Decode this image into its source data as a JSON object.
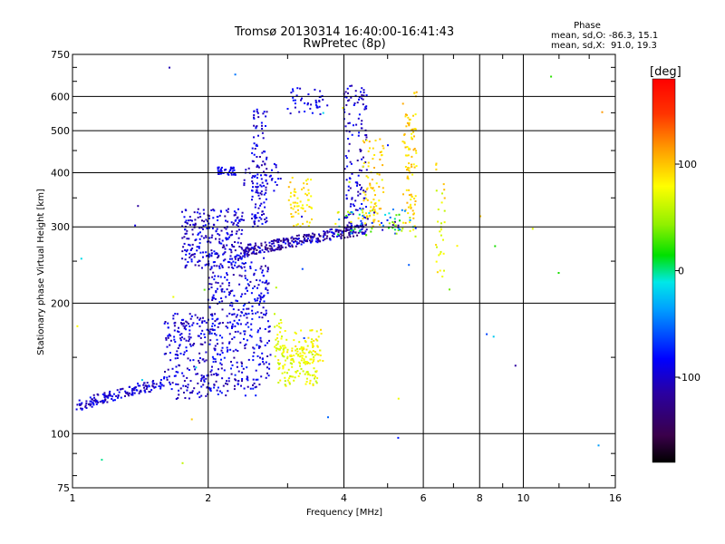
{
  "chart_data": {
    "type": "scatter",
    "title": "Tromsø 20130314 16:40:00-16:41:43",
    "subtitle": "RwPretec (8p)",
    "xlabel": "Frequency [MHz]",
    "ylabel": "Stationary phase Virtual Height [km]",
    "xscale": "log",
    "yscale": "log",
    "xlim": [
      1,
      16
    ],
    "ylim": [
      75,
      750
    ],
    "xticks": [
      1,
      2,
      4,
      6,
      8,
      10,
      16
    ],
    "xtick_labels": [
      "1",
      "2",
      "4",
      "6",
      "8",
      "10",
      "16"
    ],
    "yticks": [
      75,
      100,
      200,
      300,
      400,
      500,
      600,
      750
    ],
    "ytick_labels": [
      "75",
      "100",
      "200",
      "300",
      "400",
      "500",
      "600",
      "750"
    ],
    "grid": true,
    "phase_box": {
      "heading": "Phase",
      "line_o": "mean, sd,O: -86.3, 15.1",
      "line_x": "mean, sd,X:  91.0, 19.3"
    },
    "colorbar": {
      "label": "[deg]",
      "ticks": [
        100,
        0,
        -100
      ],
      "tick_labels": [
        "100",
        "0",
        "-100"
      ],
      "range": [
        -180,
        180
      ],
      "palette": "rainbow"
    },
    "clusters": [
      {
        "x": [
          1.02,
          1.6
        ],
        "y": [
          113,
          135
        ],
        "n": 160,
        "phase": [
          -120,
          -95
        ],
        "curve": "rise"
      },
      {
        "x": [
          1.6,
          2.0
        ],
        "y": [
          120,
          190
        ],
        "n": 190,
        "phase": [
          -120,
          -95
        ]
      },
      {
        "x": [
          2.0,
          2.6
        ],
        "y": [
          122,
          260
        ],
        "n": 340,
        "phase": [
          -120,
          -90
        ]
      },
      {
        "x": [
          2.6,
          2.75
        ],
        "y": [
          130,
          255
        ],
        "n": 70,
        "phase": [
          -120,
          -95
        ]
      },
      {
        "x": [
          1.75,
          2.4
        ],
        "y": [
          240,
          330
        ],
        "n": 260,
        "phase": [
          -120,
          -95
        ]
      },
      {
        "x": [
          2.4,
          4.5
        ],
        "y": [
          258,
          305
        ],
        "n": 300,
        "phase": [
          -140,
          -95
        ],
        "curve": "rise"
      },
      {
        "x": [
          2.1,
          2.3
        ],
        "y": [
          395,
          412
        ],
        "n": 40,
        "phase": [
          -110,
          -95
        ]
      },
      {
        "x": [
          2.5,
          2.7
        ],
        "y": [
          300,
          560
        ],
        "n": 110,
        "phase": [
          -120,
          -95
        ]
      },
      {
        "x": [
          2.4,
          2.9
        ],
        "y": [
          360,
          420
        ],
        "n": 40,
        "phase": [
          -115,
          -95
        ]
      },
      {
        "x": [
          3.0,
          3.6
        ],
        "y": [
          540,
          630
        ],
        "n": 40,
        "phase": [
          -115,
          -95
        ]
      },
      {
        "x": [
          4.0,
          4.5
        ],
        "y": [
          300,
          640
        ],
        "n": 130,
        "phase": [
          -120,
          -95
        ]
      },
      {
        "x": [
          2.85,
          3.5
        ],
        "y": [
          128,
          160
        ],
        "n": 110,
        "phase": [
          55,
          95
        ]
      },
      {
        "x": [
          3.05,
          3.6
        ],
        "y": [
          145,
          175
        ],
        "n": 70,
        "phase": [
          70,
          100
        ]
      },
      {
        "x": [
          2.8,
          3.0
        ],
        "y": [
          150,
          190
        ],
        "n": 30,
        "phase": [
          60,
          90
        ]
      },
      {
        "x": [
          3.0,
          3.4
        ],
        "y": [
          300,
          390
        ],
        "n": 60,
        "phase": [
          80,
          110
        ]
      },
      {
        "x": [
          4.4,
          4.9
        ],
        "y": [
          300,
          480
        ],
        "n": 80,
        "phase": [
          80,
          115
        ]
      },
      {
        "x": [
          5.4,
          5.8
        ],
        "y": [
          300,
          620
        ],
        "n": 90,
        "phase": [
          80,
          115
        ]
      },
      {
        "x": [
          3.8,
          5.8
        ],
        "y": [
          285,
          330
        ],
        "n": 80,
        "phase": [
          -130,
          100
        ]
      },
      {
        "x": [
          6.4,
          6.7
        ],
        "y": [
          230,
          420
        ],
        "n": 30,
        "phase": [
          60,
          110
        ]
      },
      {
        "x": [
          1.0,
          16.0
        ],
        "y": [
          78,
          700
        ],
        "n": 40,
        "phase": [
          -120,
          120
        ]
      }
    ]
  }
}
